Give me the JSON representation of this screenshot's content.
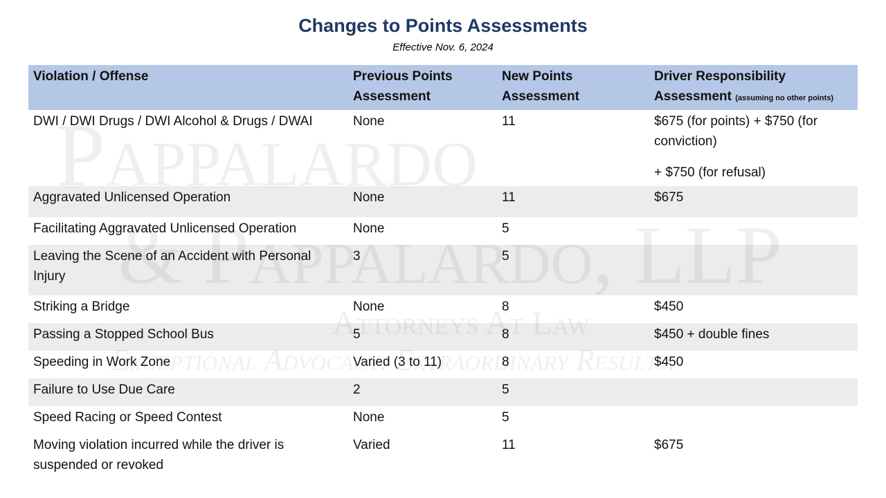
{
  "header": {
    "title": "Changes to Points Assessments",
    "subtitle": "Effective Nov. 6, 2024"
  },
  "watermark": {
    "line1": "Pappalardo",
    "line2": "& Pappalardo, LLP",
    "line3": "Attorneys At Law",
    "line4": "Exceptional Advocacy. Extraordinary Results."
  },
  "table": {
    "columns": [
      {
        "text": "Violation / Offense"
      },
      {
        "text": "Previous Points Assessment"
      },
      {
        "text": "New Points Assessment"
      },
      {
        "text": "Driver Responsibility Assessment",
        "note": "(assuming no other points)"
      }
    ],
    "rows": [
      {
        "violation": "DWI / DWI Drugs / DWI Alcohol & Drugs / DWAI",
        "previous": "None",
        "new": 11,
        "assessment": [
          "$675 (for points) + $750 (for conviction)",
          "+ $750 (for refusal)"
        ]
      },
      {
        "violation": "Aggravated Unlicensed Operation",
        "previous": "None",
        "new": 11,
        "assessment": [
          "$675"
        ]
      },
      {
        "violation": "Facilitating Aggravated Unlicensed Operation",
        "previous": "None",
        "new": 5
      },
      {
        "violation": "Leaving the Scene of an Accident with Personal Injury",
        "previous": "3",
        "new": 5
      },
      {
        "violation": "Striking a Bridge",
        "previous": "None",
        "new": 8,
        "assessment": [
          "$450"
        ]
      },
      {
        "violation": "Passing a Stopped School Bus",
        "previous": "5",
        "new": 8,
        "assessment": [
          "$450 + double fines"
        ]
      },
      {
        "violation": "Speeding in Work Zone",
        "previous": "Varied (3 to 11)",
        "new": 8,
        "assessment": [
          "$450"
        ]
      },
      {
        "violation": "Failure to Use Due Care",
        "previous": "2",
        "new": 5
      },
      {
        "violation": "Speed Racing or Speed Contest",
        "previous": "None",
        "new": 5
      },
      {
        "violation": "Moving violation incurred while the driver is suspended or revoked",
        "previous": "Varied",
        "new": 11,
        "assessment": [
          "$675"
        ]
      }
    ]
  }
}
